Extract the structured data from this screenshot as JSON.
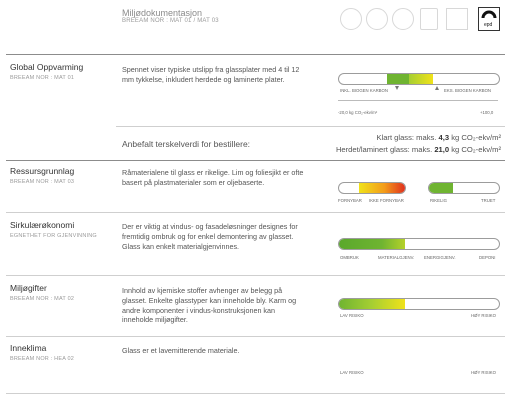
{
  "header": {
    "title": "Miljødokumentasjon",
    "subtitle": "BREEAM NOR : MAT 01 / MAT 03",
    "logo_label": "epd"
  },
  "sections": [
    {
      "title": "Global Oppvarming",
      "code": "BREEAM NOR : MAT 01",
      "text": "Spennet viser typiske utslipp fra glassplater med 4 til 12 mm tykkelse, inkludert herdede og laminerte plater.",
      "scale_labels": [
        "INKL. BIOGEN KARBON",
        "EKS. BIOGEN KARBON"
      ],
      "axis_min": "-20,0 kg CO₂-ekv/m²",
      "axis_max": "+100,0",
      "recommendation": "Anbefalt terskelverdi for bestillere:",
      "limits": [
        {
          "label": "Klart glass:",
          "prefix": "maks.",
          "value": "4,3",
          "unit": "kg CO₂-ekv/m²"
        },
        {
          "label": "Herdet/laminert glass:",
          "prefix": "maks.",
          "value": "21,0",
          "unit": "kg CO₂-ekv/m²"
        }
      ]
    },
    {
      "title": "Ressursgrunnlag",
      "code": "BREEAM NOR : MAT 03",
      "text": "Råmaterialene til glass er rikelige. Lim og foliesjikt er ofte basert på plastmaterialer som er oljebaserte.",
      "scale_labels": [
        "FORNYBAR",
        "IKKE FORNYBAR",
        "RIKELIG",
        "TRUET"
      ]
    },
    {
      "title": "Sirkulærøkonomi",
      "code": "EGNETHET FOR GJENVINNING",
      "text": "Der er viktig at vindus- og fasadeløsninger designes for fremtidig ombruk og for enkel demontering av glasset. Glass kan enkelt materialgjenvinnes.",
      "scale_labels": [
        "OMBRUK",
        "MATERIALGJENV.",
        "ENERGIGJENV.",
        "DEPONI"
      ]
    },
    {
      "title": "Miljøgifter",
      "code": "BREEAM NOR : MAT 02",
      "text": "Innhold av kjemiske stoffer avhenger av belegg på glasset. Enkelte glasstyper kan inneholde bly. Karm og andre komponenter i vindus-konstruksjonen kan inneholde miljøgifter.",
      "scale_labels": [
        "LAV RISIKO",
        "HØY RISIKO"
      ]
    },
    {
      "title": "Inneklima",
      "code": "BREEAM NOR : HEA 02",
      "text": "Glass er et lavemitterende materiale.",
      "scale_labels": [
        "LAV RISIKO",
        "HØY RISIKO"
      ]
    }
  ],
  "colors": {
    "green": "#6fb431",
    "yellow": "#f0e21a",
    "orange": "#f39c1a",
    "red": "#e0301e"
  }
}
